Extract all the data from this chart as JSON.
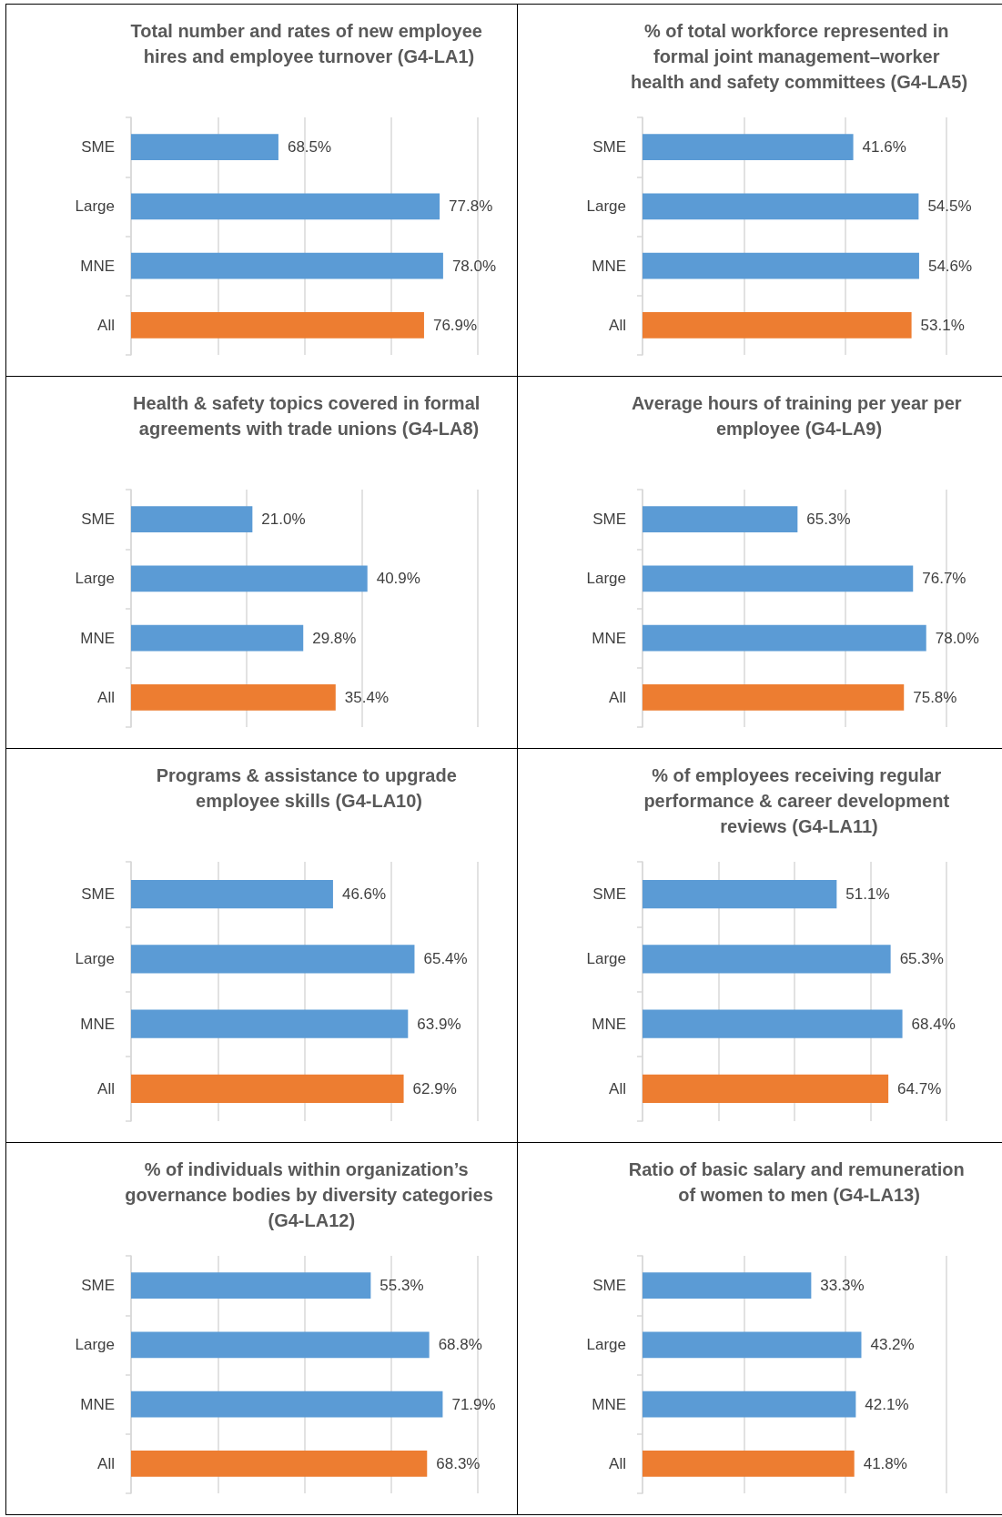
{
  "chart_data": [
    {
      "type": "bar",
      "orientation": "horizontal",
      "title": "Total number and rates of new employee hires and employee turnover (G4-LA1)",
      "categories": [
        "SME",
        "Large",
        "MNE",
        "All"
      ],
      "values": [
        68.5,
        77.8,
        78.0,
        76.9
      ],
      "value_labels": [
        "68.5%",
        "77.8%",
        "78.0%",
        "76.9%"
      ],
      "colors": [
        "#5b9bd5",
        "#5b9bd5",
        "#5b9bd5",
        "#ed7d31"
      ],
      "xlim": [
        60,
        80
      ],
      "xticks": [
        {
          "value": 60,
          "label": null
        },
        {
          "value": 65,
          "label": null
        },
        {
          "value": 70,
          "label": null
        },
        {
          "value": 75,
          "label": null
        },
        {
          "value": 80,
          "label": null
        }
      ],
      "grid": "x",
      "tick_labels": "y"
    },
    {
      "type": "bar",
      "orientation": "horizontal",
      "title": "% of total workforce represented in formal joint management–worker health and safety committees (G4-LA5)",
      "categories": [
        "SME",
        "Large",
        "MNE",
        "All"
      ],
      "values": [
        41.6,
        54.5,
        54.6,
        53.1
      ],
      "value_labels": [
        "41.6%",
        "54.5%",
        "54.6%",
        "53.1%"
      ],
      "colors": [
        "#5b9bd5",
        "#5b9bd5",
        "#5b9bd5",
        "#ed7d31"
      ],
      "xlim": [
        0,
        60
      ],
      "xticks": [
        {
          "value": 0,
          "label": null
        },
        {
          "value": 20,
          "label": null
        },
        {
          "value": 40,
          "label": null
        },
        {
          "value": 60,
          "label": null
        }
      ],
      "grid": "x",
      "tick_labels": "y"
    },
    {
      "type": "bar",
      "orientation": "horizontal",
      "title": "Health & safety topics covered in formal agreements with trade unions (G4-LA8)",
      "categories": [
        "SME",
        "Large",
        "MNE",
        "All"
      ],
      "values": [
        21.0,
        40.9,
        29.8,
        35.4
      ],
      "value_labels": [
        "21.0%",
        "40.9%",
        "29.8%",
        "35.4%"
      ],
      "colors": [
        "#5b9bd5",
        "#5b9bd5",
        "#5b9bd5",
        "#ed7d31"
      ],
      "xlim": [
        0,
        60
      ],
      "xticks": [
        {
          "value": 0,
          "label": null
        },
        {
          "value": 20,
          "label": null
        },
        {
          "value": 40,
          "label": null
        },
        {
          "value": 60,
          "label": null
        }
      ],
      "grid": "x",
      "tick_labels": "y"
    },
    {
      "type": "bar",
      "orientation": "horizontal",
      "title": "Average hours of training per year per employee (G4-LA9)",
      "categories": [
        "SME",
        "Large",
        "MNE",
        "All"
      ],
      "values": [
        65.3,
        76.7,
        78.0,
        75.8
      ],
      "value_labels": [
        "65.3%",
        "76.7%",
        "78.0%",
        "75.8%"
      ],
      "colors": [
        "#5b9bd5",
        "#5b9bd5",
        "#5b9bd5",
        "#ed7d31"
      ],
      "xlim": [
        50,
        80
      ],
      "xticks": [
        {
          "value": 50,
          "label": null
        },
        {
          "value": 60,
          "label": null
        },
        {
          "value": 70,
          "label": null
        },
        {
          "value": 80,
          "label": null
        }
      ],
      "grid": "x",
      "tick_labels": "y"
    },
    {
      "type": "bar",
      "orientation": "horizontal",
      "title": "Programs & assistance to upgrade employee skills (G4-LA10)",
      "categories": [
        "SME",
        "Large",
        "MNE",
        "All"
      ],
      "values": [
        46.6,
        65.4,
        63.9,
        62.9
      ],
      "value_labels": [
        "46.6%",
        "65.4%",
        "63.9%",
        "62.9%"
      ],
      "colors": [
        "#5b9bd5",
        "#5b9bd5",
        "#5b9bd5",
        "#ed7d31"
      ],
      "xlim": [
        0,
        80
      ],
      "xticks": [
        {
          "value": 0,
          "label": null
        },
        {
          "value": 20,
          "label": null
        },
        {
          "value": 40,
          "label": null
        },
        {
          "value": 60,
          "label": null
        },
        {
          "value": 80,
          "label": null
        }
      ],
      "grid": "x",
      "tick_labels": "y"
    },
    {
      "type": "bar",
      "orientation": "horizontal",
      "title": "% of employees receiving regular performance & career development reviews (G4-LA11)",
      "categories": [
        "SME",
        "Large",
        "MNE",
        "All"
      ],
      "values": [
        51.1,
        65.3,
        68.4,
        64.7
      ],
      "value_labels": [
        "51.1%",
        "65.3%",
        "68.4%",
        "64.7%"
      ],
      "colors": [
        "#5b9bd5",
        "#5b9bd5",
        "#5b9bd5",
        "#ed7d31"
      ],
      "xlim": [
        0,
        80
      ],
      "xticks": [
        {
          "value": 0,
          "label": null
        },
        {
          "value": 20,
          "label": null
        },
        {
          "value": 40,
          "label": null
        },
        {
          "value": 60,
          "label": null
        },
        {
          "value": 80,
          "label": null
        }
      ],
      "grid": "x",
      "tick_labels": "y"
    },
    {
      "type": "bar",
      "orientation": "horizontal",
      "title": "% of individuals within organization’s governance bodies by diversity categories (G4-LA12)",
      "categories": [
        "SME",
        "Large",
        "MNE",
        "All"
      ],
      "values": [
        55.3,
        68.8,
        71.9,
        68.3
      ],
      "value_labels": [
        "55.3%",
        "68.8%",
        "71.9%",
        "68.3%"
      ],
      "colors": [
        "#5b9bd5",
        "#5b9bd5",
        "#5b9bd5",
        "#ed7d31"
      ],
      "xlim": [
        0,
        80
      ],
      "xticks": [
        {
          "value": 0,
          "label": null
        },
        {
          "value": 20,
          "label": null
        },
        {
          "value": 40,
          "label": null
        },
        {
          "value": 60,
          "label": null
        },
        {
          "value": 80,
          "label": null
        }
      ],
      "grid": "x",
      "tick_labels": "y"
    },
    {
      "type": "bar",
      "orientation": "horizontal",
      "title": "Ratio of basic salary and remuneration of women to men (G4-LA13)",
      "categories": [
        "SME",
        "Large",
        "MNE",
        "All"
      ],
      "values": [
        33.3,
        43.2,
        42.1,
        41.8
      ],
      "value_labels": [
        "33.3%",
        "43.2%",
        "42.1%",
        "41.8%"
      ],
      "colors": [
        "#5b9bd5",
        "#5b9bd5",
        "#5b9bd5",
        "#ed7d31"
      ],
      "xlim": [
        0,
        60
      ],
      "xticks": [
        {
          "value": 0,
          "label": null
        },
        {
          "value": 20,
          "label": null
        },
        {
          "value": 40,
          "label": null
        },
        {
          "value": 60,
          "label": null
        }
      ],
      "grid": "x",
      "tick_labels": "y"
    }
  ]
}
